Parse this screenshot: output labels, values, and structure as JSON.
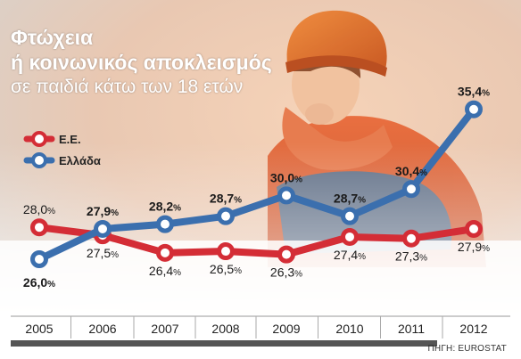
{
  "title": {
    "line1": "Φτώχεια",
    "line2": "ή κοινωνικός αποκλεισμός",
    "line3": "σε παιδιά κάτω των 18 ετών"
  },
  "source": "ΠΗΓΗ: EUROSTAT",
  "colors": {
    "eu": "#d42d36",
    "greece": "#3b6fae",
    "axis": "#888888",
    "bottom_bar": "#555555"
  },
  "chart_data": {
    "type": "line",
    "x": [
      "2005",
      "2006",
      "2007",
      "2008",
      "2009",
      "2010",
      "2011",
      "2012"
    ],
    "series": [
      {
        "name": "Ε.Ε.",
        "key": "eu",
        "values": [
          28.0,
          27.5,
          26.4,
          26.5,
          26.3,
          27.4,
          27.3,
          27.9
        ],
        "labels": [
          "28,0%",
          "27,5%",
          "26,4%",
          "26,5%",
          "26,3%",
          "27,4%",
          "27,3%",
          "27,9%"
        ]
      },
      {
        "name": "Ελλάδα",
        "key": "greece",
        "values": [
          26.0,
          27.9,
          28.2,
          28.7,
          30.0,
          28.7,
          30.4,
          35.4
        ],
        "labels": [
          "26,0%",
          "27,9%",
          "28,2%",
          "28,7%",
          "30,0%",
          "28,7%",
          "30,4%",
          "35,4%"
        ]
      }
    ],
    "legend_position": "top-left",
    "grid": false
  }
}
